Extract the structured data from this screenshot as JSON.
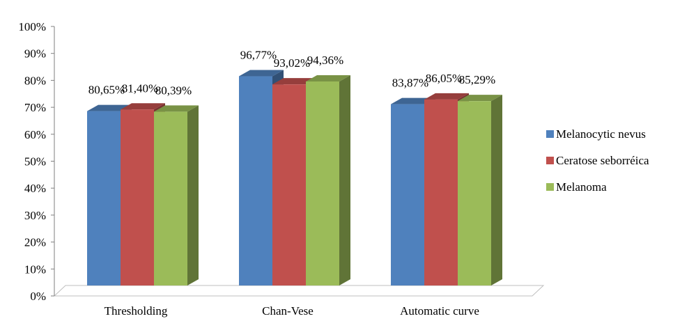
{
  "chart_data": {
    "type": "bar",
    "categories": [
      "Thresholding",
      "Chan-Vese",
      "Automatic curve"
    ],
    "series": [
      {
        "name": "Melanocytic nevus",
        "color": "#4F81BD",
        "values": [
          80.65,
          96.77,
          83.87
        ],
        "labels": [
          "80,65%",
          "96,77%",
          "83,87%"
        ]
      },
      {
        "name": "Ceratose seborréica",
        "color": "#C0504D",
        "values": [
          81.4,
          93.02,
          86.05
        ],
        "labels": [
          "81,40%",
          "93,02%",
          "86,05%"
        ]
      },
      {
        "name": "Melanoma",
        "color": "#9BBB59",
        "values": [
          80.39,
          94.36,
          85.29
        ],
        "labels": [
          "80,39%",
          "94,36%",
          "85,29%"
        ]
      }
    ],
    "y_ticks": [
      "0%",
      "10%",
      "20%",
      "30%",
      "40%",
      "50%",
      "60%",
      "70%",
      "80%",
      "90%",
      "100%"
    ],
    "ylim": [
      0,
      100
    ],
    "grid": false,
    "legend": "right",
    "style": "3d-clustered-column"
  }
}
